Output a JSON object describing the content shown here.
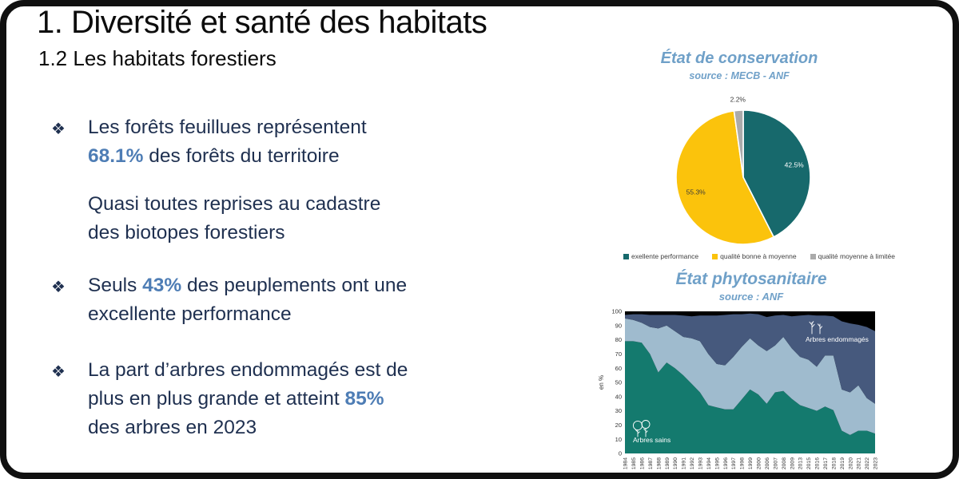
{
  "slide": {
    "title": "1. Diversité et santé des habitats",
    "subtitle": "1.2 Les habitats forestiers"
  },
  "colors": {
    "accent_blue": "#4E7DB5",
    "text_navy": "#1F3050",
    "chart_header_blue": "#6FA0C8",
    "pie_teal": "#17696C",
    "pie_yellow": "#FBC30C",
    "pie_gray": "#ABABAB",
    "area_teal": "#147A6E",
    "area_lightblue": "#9FBBCE",
    "area_navy": "#46597D",
    "area_background": "#000000"
  },
  "bullets": [
    {
      "marker": "❖",
      "lines": [
        [
          {
            "t": "Les forêts feuillues représentent"
          }
        ],
        [
          {
            "t": "68.1%",
            "em": true
          },
          {
            "t": " des forêts du territoire"
          }
        ]
      ]
    },
    {
      "marker": "",
      "lines": [
        [
          {
            "t": "Quasi toutes reprises au cadastre"
          }
        ],
        [
          {
            "t": "des biotopes forestiers"
          }
        ]
      ]
    },
    {
      "marker": "❖",
      "lines": [
        [
          {
            "t": "Seuls "
          },
          {
            "t": "43%",
            "em": true
          },
          {
            "t": " des peuplements ont une"
          }
        ],
        [
          {
            "t": "excellente performance"
          }
        ]
      ]
    },
    {
      "marker": "❖",
      "lines": [
        [
          {
            "t": "La part d’arbres endommagés est de"
          }
        ],
        [
          {
            "t": "plus en plus grande et atteint "
          },
          {
            "t": "85%",
            "em": true
          }
        ],
        [
          {
            "t": "des arbres en 2023"
          }
        ]
      ]
    }
  ],
  "chart_data": [
    {
      "id": "conservation-pie",
      "type": "pie",
      "title": "État de conservation",
      "source": "source : MECB - ANF",
      "start_angle": "top",
      "clockwise": true,
      "legend_position": "bottom",
      "slices": [
        {
          "label": "exellente performance",
          "value": 42.5,
          "data_label": "42.5%",
          "color": "#17696C",
          "label_color": "#ffffff",
          "label_radius": 0.78
        },
        {
          "label": "qualité bonne à moyenne",
          "value": 55.3,
          "data_label": "55.3%",
          "color": "#FBC30C",
          "label_color": "#3a3a3a",
          "label_radius": 0.74
        },
        {
          "label": "qualité moyenne à limitée",
          "value": 2.2,
          "data_label": "2.2%",
          "color": "#ABABAB",
          "label_color": "#3a3a3a",
          "label_radius": 1.16
        }
      ]
    },
    {
      "id": "phyto-area",
      "type": "area",
      "stacked": true,
      "title": "État phytosanitaire",
      "source": "source : ANF",
      "ylabel": "en %",
      "ylim": [
        0,
        100
      ],
      "yticks": [
        0,
        10,
        20,
        30,
        40,
        50,
        60,
        70,
        80,
        90,
        100
      ],
      "grid": false,
      "background": "#000000",
      "x": [
        "1984",
        "1985",
        "1986",
        "1987",
        "1988",
        "1989",
        "1990",
        "1991",
        "1992",
        "1993",
        "1994",
        "1995",
        "1996",
        "1997",
        "1998",
        "1999",
        "2000",
        "2006",
        "2007",
        "2008",
        "2009",
        "2013",
        "2015",
        "2016",
        "2017",
        "2018",
        "2019",
        "2020",
        "2021",
        "2022",
        "2023"
      ],
      "series": [
        {
          "name": "Arbres sains",
          "color": "#147A6E",
          "values": [
            79,
            79,
            78,
            70,
            57,
            64,
            60,
            55,
            49,
            43,
            34,
            32.5,
            31,
            31,
            38,
            45,
            41.5,
            35,
            43,
            44,
            38.5,
            34,
            32,
            30,
            33,
            30.5,
            16,
            13,
            16,
            16,
            14
          ]
        },
        {
          "name": "",
          "color": "#9FBBCE",
          "values": [
            16,
            15,
            14,
            19,
            31,
            26,
            26,
            27,
            32,
            36,
            36,
            30.5,
            31,
            37,
            37,
            36,
            34.5,
            37,
            33,
            38,
            35.5,
            34,
            34,
            31,
            36,
            38.5,
            29,
            30,
            32,
            23,
            21
          ]
        },
        {
          "name": "Arbres endommagés",
          "color": "#46597D",
          "values": [
            2.5,
            4,
            6,
            8.5,
            9.5,
            7.5,
            11.5,
            15,
            15.5,
            18,
            27,
            34,
            35.5,
            30,
            23,
            17.5,
            22,
            24,
            21,
            15.5,
            22.5,
            29,
            31.5,
            36,
            28,
            27.5,
            48,
            48.5,
            42.5,
            50,
            51
          ]
        }
      ],
      "annotations": [
        {
          "icon": "trees-icon",
          "text": "Arbres sains",
          "color": "#ffffff"
        },
        {
          "icon": "damaged-trees-icon",
          "text": "Arbres endommagés",
          "color": "#ffffff"
        }
      ]
    }
  ]
}
